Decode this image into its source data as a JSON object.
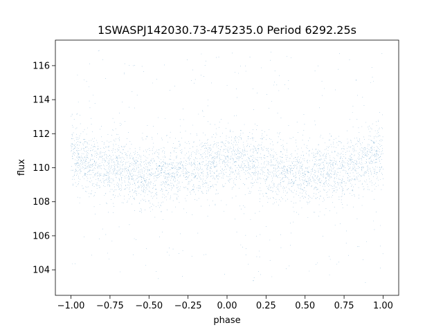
{
  "chart_data": {
    "type": "scatter",
    "title": "1SWASPJ142030.73-475235.0 Period 6292.25s",
    "xlabel": "phase",
    "ylabel": "flux",
    "xlim": [
      -1.1,
      1.1
    ],
    "ylim": [
      102.5,
      117.5
    ],
    "xticks": [
      -1.0,
      -0.75,
      -0.5,
      -0.25,
      0.0,
      0.25,
      0.5,
      0.75,
      1.0
    ],
    "xtick_labels": [
      "−1.00",
      "−0.75",
      "−0.50",
      "−0.25",
      "0.00",
      "0.25",
      "0.50",
      "0.75",
      "1.00"
    ],
    "yticks": [
      104,
      106,
      108,
      110,
      112,
      114,
      116
    ],
    "ytick_labels": [
      "104",
      "106",
      "108",
      "110",
      "112",
      "114",
      "116"
    ],
    "grid": false,
    "legend": "none",
    "series": [
      {
        "color": "#1f77b4",
        "marker_size": 0.5,
        "x_range": [
          -1.0,
          1.0
        ],
        "y_range": [
          103.2,
          116.9
        ],
        "trend": {
          "x": [
            -1.0,
            -0.75,
            -0.5,
            -0.25,
            0.0,
            0.25,
            0.5,
            0.75,
            1.0
          ],
          "y": [
            110.6,
            110.0,
            109.5,
            109.9,
            110.5,
            110.1,
            109.5,
            110.0,
            110.6
          ]
        },
        "scatter_sd": 0.9,
        "outlier_fraction": 0.09,
        "n_points": 30000
      }
    ]
  }
}
